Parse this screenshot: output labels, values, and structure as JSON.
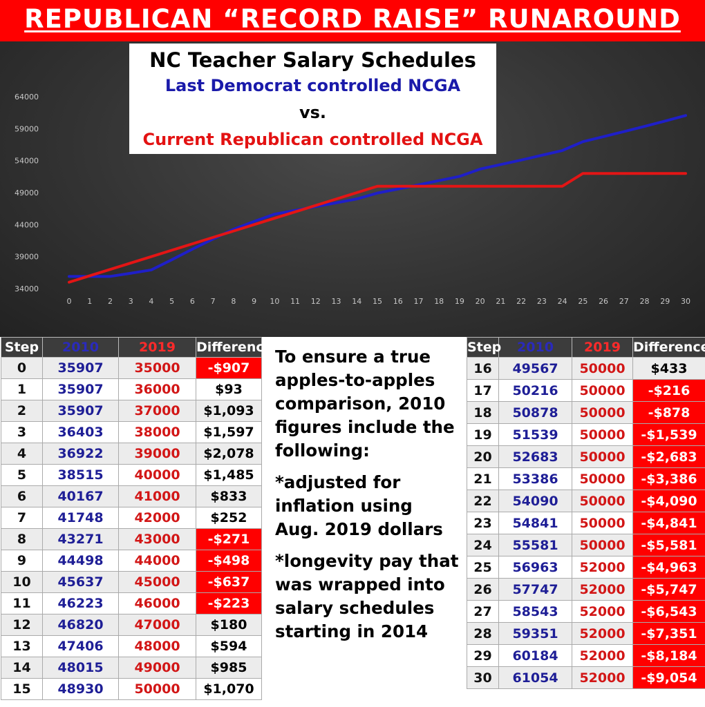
{
  "banner": {
    "text": "REPUBLICAN “RECORD RAISE” RUNAROUND"
  },
  "chart_data": {
    "type": "line",
    "title_lines": [
      "NC Teacher Salary Schedules",
      "Last Democrat controlled NCGA",
      "vs.",
      "Current Republican controlled NCGA"
    ],
    "x": [
      0,
      1,
      2,
      3,
      4,
      5,
      6,
      7,
      8,
      9,
      10,
      11,
      12,
      13,
      14,
      15,
      16,
      17,
      18,
      19,
      20,
      21,
      22,
      23,
      24,
      25,
      26,
      27,
      28,
      29,
      30
    ],
    "y_ticks": [
      34000,
      39000,
      44000,
      49000,
      54000,
      59000,
      64000
    ],
    "xlim": [
      0,
      30
    ],
    "ylim": [
      34000,
      64000
    ],
    "grid": false,
    "series": [
      {
        "name": "2010",
        "color": "#1f1fc8",
        "values": [
          35907,
          35907,
          35907,
          36403,
          36922,
          38515,
          40167,
          41748,
          43271,
          44498,
          45637,
          46223,
          46820,
          47406,
          48015,
          48930,
          49567,
          50216,
          50878,
          51539,
          52683,
          53386,
          54090,
          54841,
          55581,
          56963,
          57747,
          58543,
          59351,
          60184,
          61054
        ]
      },
      {
        "name": "2019",
        "color": "#e31515",
        "values": [
          35000,
          36000,
          37000,
          38000,
          39000,
          40000,
          41000,
          42000,
          43000,
          44000,
          45000,
          46000,
          47000,
          48000,
          49000,
          50000,
          50000,
          50000,
          50000,
          50000,
          50000,
          50000,
          50000,
          50000,
          50000,
          52000,
          52000,
          52000,
          52000,
          52000,
          52000
        ]
      }
    ]
  },
  "table": {
    "headers": {
      "step": "Step",
      "y2010": "2010",
      "y2019": "2019",
      "diff": "Difference"
    },
    "rows": [
      {
        "step": "0",
        "v2010": "35907",
        "v2019": "35000",
        "diff": "-$907"
      },
      {
        "step": "1",
        "v2010": "35907",
        "v2019": "36000",
        "diff": "$93"
      },
      {
        "step": "2",
        "v2010": "35907",
        "v2019": "37000",
        "diff": "$1,093"
      },
      {
        "step": "3",
        "v2010": "36403",
        "v2019": "38000",
        "diff": "$1,597"
      },
      {
        "step": "4",
        "v2010": "36922",
        "v2019": "39000",
        "diff": "$2,078"
      },
      {
        "step": "5",
        "v2010": "38515",
        "v2019": "40000",
        "diff": "$1,485"
      },
      {
        "step": "6",
        "v2010": "40167",
        "v2019": "41000",
        "diff": "$833"
      },
      {
        "step": "7",
        "v2010": "41748",
        "v2019": "42000",
        "diff": "$252"
      },
      {
        "step": "8",
        "v2010": "43271",
        "v2019": "43000",
        "diff": "-$271"
      },
      {
        "step": "9",
        "v2010": "44498",
        "v2019": "44000",
        "diff": "-$498"
      },
      {
        "step": "10",
        "v2010": "45637",
        "v2019": "45000",
        "diff": "-$637"
      },
      {
        "step": "11",
        "v2010": "46223",
        "v2019": "46000",
        "diff": "-$223"
      },
      {
        "step": "12",
        "v2010": "46820",
        "v2019": "47000",
        "diff": "$180"
      },
      {
        "step": "13",
        "v2010": "47406",
        "v2019": "48000",
        "diff": "$594"
      },
      {
        "step": "14",
        "v2010": "48015",
        "v2019": "49000",
        "diff": "$985"
      },
      {
        "step": "15",
        "v2010": "48930",
        "v2019": "50000",
        "diff": "$1,070"
      },
      {
        "step": "16",
        "v2010": "49567",
        "v2019": "50000",
        "diff": "$433"
      },
      {
        "step": "17",
        "v2010": "50216",
        "v2019": "50000",
        "diff": "-$216"
      },
      {
        "step": "18",
        "v2010": "50878",
        "v2019": "50000",
        "diff": "-$878"
      },
      {
        "step": "19",
        "v2010": "51539",
        "v2019": "50000",
        "diff": "-$1,539"
      },
      {
        "step": "20",
        "v2010": "52683",
        "v2019": "50000",
        "diff": "-$2,683"
      },
      {
        "step": "21",
        "v2010": "53386",
        "v2019": "50000",
        "diff": "-$3,386"
      },
      {
        "step": "22",
        "v2010": "54090",
        "v2019": "50000",
        "diff": "-$4,090"
      },
      {
        "step": "23",
        "v2010": "54841",
        "v2019": "50000",
        "diff": "-$4,841"
      },
      {
        "step": "24",
        "v2010": "55581",
        "v2019": "50000",
        "diff": "-$5,581"
      },
      {
        "step": "25",
        "v2010": "56963",
        "v2019": "52000",
        "diff": "-$4,963"
      },
      {
        "step": "26",
        "v2010": "57747",
        "v2019": "52000",
        "diff": "-$5,747"
      },
      {
        "step": "27",
        "v2010": "58543",
        "v2019": "52000",
        "diff": "-$6,543"
      },
      {
        "step": "28",
        "v2010": "59351",
        "v2019": "52000",
        "diff": "-$7,351"
      },
      {
        "step": "29",
        "v2010": "60184",
        "v2019": "52000",
        "diff": "-$8,184"
      },
      {
        "step": "30",
        "v2010": "61054",
        "v2019": "52000",
        "diff": "-$9,054"
      }
    ]
  },
  "note": {
    "paragraphs": [
      "To ensure a true apples-to-apples comparison, 2010 figures include the following:",
      "*adjusted for inflation using Aug. 2019 dollars",
      "*longevity pay that was wrapped into salary schedules starting in 2014"
    ]
  },
  "colors": {
    "banner": "#ff0000",
    "negative_cell": "#ff0000",
    "series_2010": "#1f1fc8",
    "series_2019": "#e31515"
  }
}
